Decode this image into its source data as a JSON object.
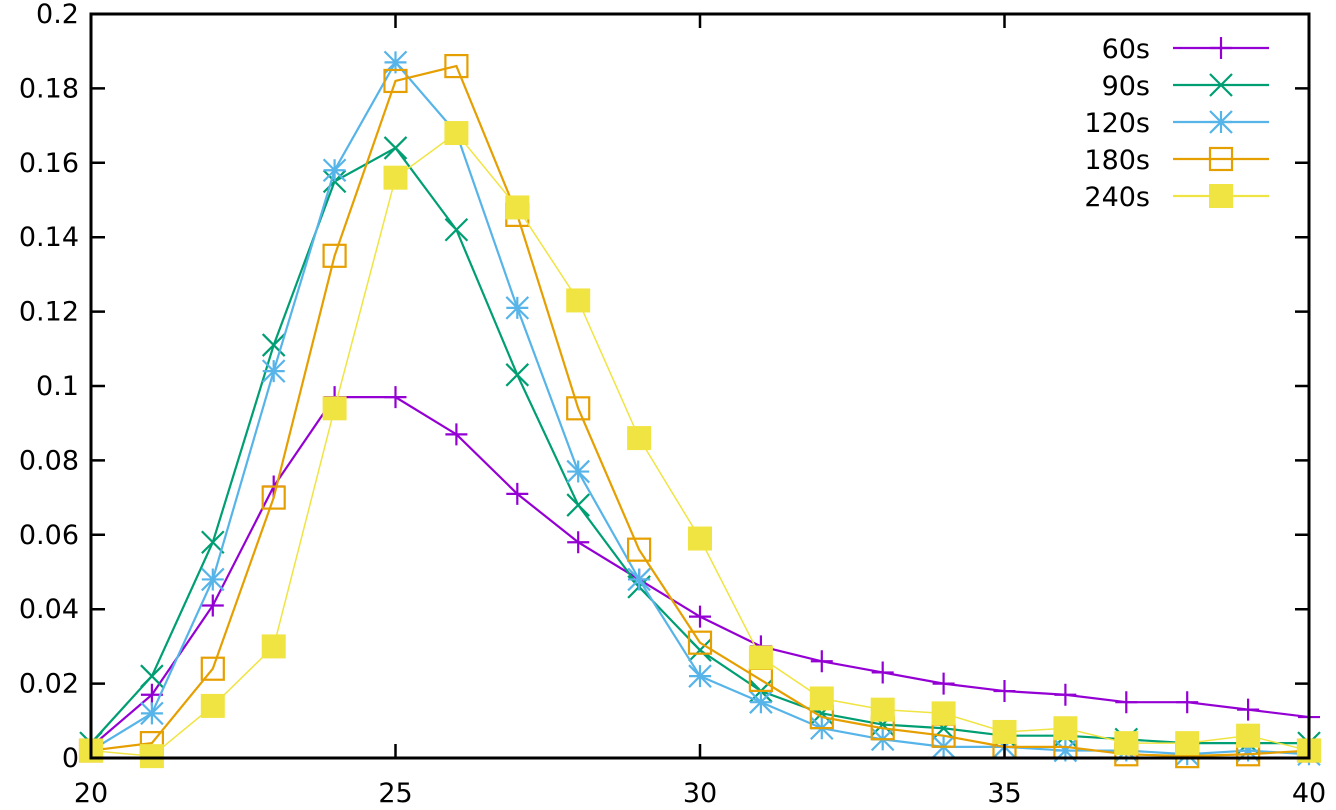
{
  "chart_data": {
    "type": "line",
    "title": "",
    "xlabel": "",
    "ylabel": "",
    "xlim": [
      20,
      40
    ],
    "ylim": [
      0,
      0.2
    ],
    "grid": false,
    "legend_position": "top-right",
    "x_ticks": [
      "20",
      "25",
      "30",
      "35",
      "40"
    ],
    "y_ticks": [
      "0",
      "0.02",
      "0.04",
      "0.06",
      "0.08",
      "0.1",
      "0.12",
      "0.14",
      "0.16",
      "0.18",
      "0.2"
    ],
    "x": [
      20,
      21,
      22,
      23,
      24,
      25,
      26,
      27,
      28,
      29,
      30,
      31,
      32,
      33,
      34,
      35,
      36,
      37,
      38,
      39,
      40
    ],
    "series": [
      {
        "name": "60s",
        "color": "#9400d3",
        "marker": "plus",
        "values": [
          0.003,
          0.017,
          0.041,
          0.073,
          0.097,
          0.097,
          0.087,
          0.071,
          0.058,
          0.048,
          0.038,
          0.03,
          0.026,
          0.023,
          0.02,
          0.018,
          0.017,
          0.015,
          0.015,
          0.013,
          0.011
        ]
      },
      {
        "name": "90s",
        "color": "#009e73",
        "marker": "cross",
        "values": [
          0.004,
          0.022,
          0.058,
          0.111,
          0.155,
          0.164,
          0.142,
          0.103,
          0.068,
          0.046,
          0.029,
          0.018,
          0.012,
          0.009,
          0.008,
          0.006,
          0.006,
          0.005,
          0.004,
          0.004,
          0.004
        ]
      },
      {
        "name": "120s",
        "color": "#56b4e9",
        "marker": "star",
        "values": [
          0.002,
          0.012,
          0.048,
          0.104,
          0.158,
          0.187,
          0.168,
          0.121,
          0.077,
          0.048,
          0.022,
          0.015,
          0.008,
          0.005,
          0.003,
          0.003,
          0.002,
          0.002,
          0.001,
          0.002,
          0.001
        ]
      },
      {
        "name": "180s",
        "color": "#e69f00",
        "marker": "open-square",
        "values": [
          0.002,
          0.004,
          0.024,
          0.07,
          0.135,
          0.182,
          0.186,
          0.146,
          0.094,
          0.056,
          0.031,
          0.021,
          0.011,
          0.008,
          0.006,
          0.003,
          0.003,
          0.001,
          0.0005,
          0.001,
          0.002
        ]
      },
      {
        "name": "240s",
        "color": "#f0e442",
        "marker": "filled-square",
        "values": [
          0.002,
          0.0005,
          0.014,
          0.03,
          0.094,
          0.156,
          0.168,
          0.148,
          0.123,
          0.086,
          0.059,
          0.027,
          0.016,
          0.013,
          0.012,
          0.007,
          0.008,
          0.004,
          0.004,
          0.006,
          0.002
        ]
      }
    ]
  }
}
